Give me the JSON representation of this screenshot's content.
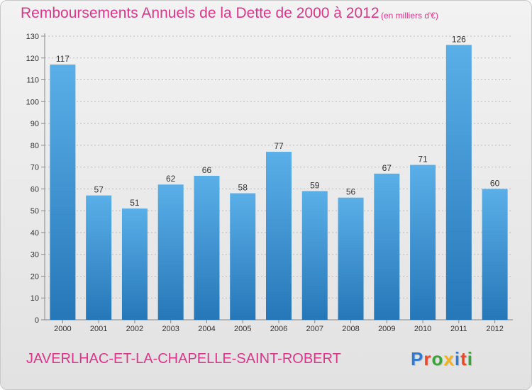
{
  "title": "Remboursements Annuels de la Dette de 2000 à 2012",
  "unit": "(en milliers d'€)",
  "commune": "JAVERLHAC-ET-LA-CHAPELLE-SAINT-ROBERT",
  "logo": {
    "text": "Proxiti",
    "colors": [
      "#2e7bd6",
      "#e8492b",
      "#3aa537",
      "#f2b21b",
      "#2e7bd6",
      "#e8492b",
      "#3aa537"
    ]
  },
  "colors": {
    "title": "#d9378a",
    "bar_top": "#5aafe8",
    "bar_bottom": "#2677b8",
    "grid": "#bdbdbd"
  },
  "chart_data": {
    "type": "bar",
    "categories": [
      "2000",
      "2001",
      "2002",
      "2003",
      "2004",
      "2005",
      "2006",
      "2007",
      "2008",
      "2009",
      "2010",
      "2011",
      "2012"
    ],
    "values": [
      117,
      57,
      51,
      62,
      66,
      58,
      77,
      59,
      56,
      67,
      71,
      126,
      60
    ],
    "ylim": [
      0,
      130
    ],
    "yticks": [
      0,
      10,
      20,
      30,
      40,
      50,
      60,
      70,
      80,
      90,
      100,
      110,
      120,
      130
    ],
    "grid": true,
    "data_labels": true
  }
}
